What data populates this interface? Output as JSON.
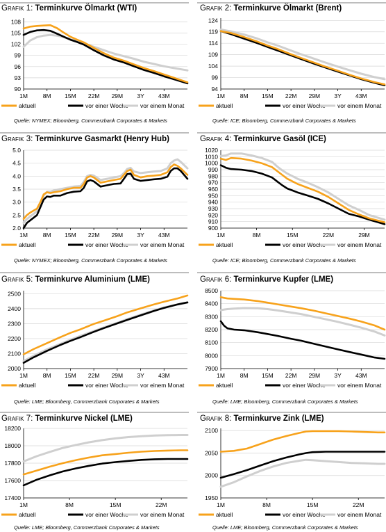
{
  "legend_labels": [
    "aktuell",
    "vor einer Woche",
    "vor einem Monat"
  ],
  "colors": {
    "aktuell": "#f7a21b",
    "woche": "#000000",
    "monat": "#cfcfcf",
    "grid": "#d6d6d6",
    "separator": "#bdbdbd"
  },
  "charts": [
    {
      "id": "c1",
      "prefix": "Grafik 1:",
      "title": "Terminkurve Ölmarkt (WTI)",
      "source": "Quelle: NYMEX; Bloomberg, Commerzbank Corporates & Markets"
    },
    {
      "id": "c2",
      "prefix": "Grafik 2:",
      "title": "Terminkurve Ölmarkt (Brent)",
      "source": "Quelle: ICE; Bloomberg, Commerzbank Corporates & Markets"
    },
    {
      "id": "c3",
      "prefix": "Grafik 3:",
      "title": "Terminkurve Gasmarkt (Henry Hub)",
      "source": "Quelle: NYMEX; Bloomberg, Commerzbank Corporates & Markets"
    },
    {
      "id": "c4",
      "prefix": "Grafik 4:",
      "title": "Terminkurve Gasöl (ICE)",
      "source": "Quelle: ICE; Bloomberg, Commerzbank Corporates & Markets"
    },
    {
      "id": "c5",
      "prefix": "Grafik 5:",
      "title": "Terminkurve Aluminium (LME)",
      "source": "Quelle: LME; Bloomberg, Commerzbank Corporates & Markets"
    },
    {
      "id": "c6",
      "prefix": "Grafik 6:",
      "title": "Terminkurve Kupfer (LME)",
      "source": "Quelle: LME; Bloomberg, Commerzbank Corporates & Markets"
    },
    {
      "id": "c7",
      "prefix": "Grafik 7:",
      "title": "Terminkurve Nickel (LME)",
      "source": "Quelle: LME; Bloomberg, Commerzbank Corporates & Markets"
    },
    {
      "id": "c8",
      "prefix": "Grafik 8:",
      "title": "Terminkurve Zink (LME)",
      "source": "Quelle: LME; Bloomberg, Commerzbank Corporates & Markets"
    }
  ],
  "chart_data": [
    {
      "type": "line",
      "id": "c1",
      "yticks": [
        90,
        93,
        96,
        99,
        102,
        105,
        108
      ],
      "ylim": [
        90,
        109
      ],
      "xticks": [
        "1M",
        "8M",
        "15M",
        "22M",
        "29M",
        "3Y",
        "43M"
      ],
      "xtick_months": [
        1,
        8,
        15,
        22,
        29,
        36,
        43
      ],
      "xlim": [
        1,
        50
      ],
      "x": [
        1,
        3,
        5,
        7,
        9,
        11,
        13,
        15,
        17,
        19,
        22,
        25,
        28,
        31,
        34,
        37,
        40,
        43,
        46,
        50
      ],
      "series": [
        {
          "key": "aktuell",
          "values": [
            106.2,
            106.7,
            106.9,
            107.0,
            107.1,
            106.3,
            105.1,
            104.0,
            103.2,
            102.5,
            101.0,
            99.6,
            98.4,
            97.6,
            96.6,
            95.6,
            94.8,
            93.9,
            93.0,
            91.8
          ]
        },
        {
          "key": "woche",
          "values": [
            104.5,
            105.3,
            105.7,
            105.8,
            105.6,
            104.8,
            104.0,
            103.2,
            102.6,
            101.9,
            100.4,
            99.0,
            97.9,
            97.1,
            96.1,
            95.1,
            94.3,
            93.4,
            92.6,
            91.5
          ]
        },
        {
          "key": "monat",
          "values": [
            101.3,
            103.0,
            103.9,
            104.3,
            104.5,
            104.3,
            103.9,
            103.3,
            102.8,
            102.3,
            101.3,
            100.4,
            99.5,
            98.8,
            98.1,
            97.3,
            96.7,
            96.1,
            95.6,
            95.0
          ]
        }
      ]
    },
    {
      "type": "line",
      "id": "c2",
      "yticks": [
        94,
        99,
        104,
        109,
        114,
        119,
        124
      ],
      "ylim": [
        94,
        125
      ],
      "xticks": [
        "1M",
        "8M",
        "15M",
        "22M",
        "29M",
        "3Y",
        "43M"
      ],
      "xtick_months": [
        1,
        8,
        15,
        22,
        29,
        36,
        43
      ],
      "xlim": [
        1,
        50
      ],
      "x": [
        1,
        4,
        8,
        12,
        15,
        18,
        22,
        25,
        29,
        32,
        36,
        40,
        43,
        47,
        50
      ],
      "series": [
        {
          "key": "aktuell",
          "values": [
            119.3,
            118.5,
            116.7,
            114.7,
            113.0,
            111.5,
            109.2,
            107.6,
            105.5,
            103.9,
            102.0,
            100.0,
            98.6,
            97.0,
            96.0
          ]
        },
        {
          "key": "woche",
          "values": [
            119.3,
            118.0,
            116.0,
            114.0,
            112.4,
            110.8,
            108.7,
            107.1,
            105.0,
            103.5,
            101.6,
            99.7,
            98.3,
            96.7,
            95.6
          ]
        },
        {
          "key": "monat",
          "values": [
            120.0,
            119.2,
            117.8,
            116.0,
            114.4,
            113.0,
            110.8,
            109.2,
            107.2,
            105.7,
            103.8,
            102.0,
            100.7,
            99.2,
            98.3
          ]
        }
      ]
    },
    {
      "type": "line",
      "id": "c3",
      "yticks": [
        2.0,
        2.5,
        3.0,
        3.5,
        4.0,
        4.5,
        5.0
      ],
      "ylim": [
        2.0,
        5.0
      ],
      "xticks": [
        "1M",
        "8M",
        "15M",
        "22M",
        "29M",
        "3Y",
        "43M"
      ],
      "xtick_months": [
        1,
        8,
        15,
        22,
        29,
        36,
        43
      ],
      "xlim": [
        1,
        50
      ],
      "x": [
        1,
        2,
        3,
        5,
        6,
        7,
        8,
        9,
        10,
        12,
        14,
        16,
        18,
        19,
        20,
        21,
        22,
        24,
        26,
        28,
        30,
        31,
        32,
        33,
        34,
        36,
        38,
        40,
        42,
        44,
        45,
        46,
        47,
        48,
        50
      ],
      "series": [
        {
          "key": "aktuell",
          "values": [
            2.35,
            2.5,
            2.6,
            2.75,
            3.0,
            3.3,
            3.38,
            3.35,
            3.38,
            3.42,
            3.5,
            3.55,
            3.55,
            3.7,
            3.95,
            4.0,
            3.95,
            3.75,
            3.8,
            3.85,
            3.9,
            4.05,
            4.2,
            4.25,
            4.05,
            3.95,
            4.0,
            4.02,
            4.05,
            4.15,
            4.35,
            4.45,
            4.4,
            4.3,
            4.05
          ]
        },
        {
          "key": "woche",
          "values": [
            2.0,
            2.2,
            2.3,
            2.5,
            2.8,
            3.1,
            3.22,
            3.2,
            3.25,
            3.25,
            3.35,
            3.4,
            3.42,
            3.55,
            3.8,
            3.85,
            3.8,
            3.6,
            3.65,
            3.7,
            3.72,
            3.9,
            4.08,
            4.1,
            3.9,
            3.82,
            3.85,
            3.88,
            3.9,
            3.98,
            4.2,
            4.3,
            4.3,
            4.2,
            3.9
          ]
        },
        {
          "key": "monat",
          "values": [
            2.2,
            2.35,
            2.45,
            2.65,
            2.95,
            3.25,
            3.4,
            3.4,
            3.45,
            3.5,
            3.55,
            3.6,
            3.62,
            3.78,
            4.0,
            4.05,
            4.02,
            3.85,
            3.9,
            3.95,
            4.0,
            4.12,
            4.28,
            4.32,
            4.18,
            4.12,
            4.15,
            4.18,
            4.2,
            4.3,
            4.5,
            4.6,
            4.65,
            4.55,
            4.3
          ]
        }
      ]
    },
    {
      "type": "line",
      "id": "c4",
      "yticks": [
        900,
        910,
        920,
        930,
        940,
        950,
        960,
        970,
        980,
        990,
        1000,
        1010,
        1020
      ],
      "ylim": [
        900,
        1020
      ],
      "xticks": [
        "1M",
        "8M",
        "15M",
        "22M",
        "29M"
      ],
      "xtick_months": [
        1,
        8,
        15,
        22,
        29
      ],
      "xlim": [
        1,
        33
      ],
      "x": [
        1,
        2,
        3,
        5,
        7,
        9,
        11,
        12,
        13,
        14,
        15,
        16,
        18,
        20,
        22,
        24,
        26,
        28,
        30,
        33
      ],
      "series": [
        {
          "key": "aktuell",
          "values": [
            1007,
            1005,
            1008,
            1007,
            1004,
            1000,
            994,
            988,
            982,
            976,
            972,
            968,
            962,
            956,
            948,
            938,
            928,
            921,
            915,
            909
          ]
        },
        {
          "key": "woche",
          "values": [
            997,
            993,
            991,
            990,
            988,
            984,
            978,
            972,
            966,
            961,
            958,
            955,
            950,
            945,
            938,
            930,
            922,
            918,
            913,
            906
          ]
        },
        {
          "key": "monat",
          "values": [
            1011,
            1012,
            1015,
            1015,
            1012,
            1008,
            1002,
            995,
            989,
            984,
            980,
            976,
            970,
            963,
            955,
            945,
            935,
            928,
            920,
            913
          ]
        }
      ]
    },
    {
      "type": "line",
      "id": "c5",
      "yticks": [
        2000,
        2100,
        2200,
        2300,
        2400,
        2500
      ],
      "ylim": [
        2000,
        2520
      ],
      "xticks": [
        "1M",
        "8M",
        "15M",
        "22M",
        "29M",
        "3Y",
        "43M"
      ],
      "xtick_months": [
        1,
        8,
        15,
        22,
        29,
        36,
        43
      ],
      "xlim": [
        1,
        50
      ],
      "x": [
        1,
        4,
        8,
        12,
        15,
        18,
        22,
        25,
        29,
        32,
        36,
        40,
        43,
        47,
        50
      ],
      "series": [
        {
          "key": "aktuell",
          "values": [
            2095,
            2130,
            2170,
            2210,
            2238,
            2262,
            2298,
            2320,
            2350,
            2375,
            2402,
            2428,
            2446,
            2468,
            2488
          ]
        },
        {
          "key": "woche",
          "values": [
            2038,
            2075,
            2118,
            2158,
            2185,
            2210,
            2245,
            2270,
            2302,
            2325,
            2355,
            2385,
            2405,
            2428,
            2442
          ]
        },
        {
          "key": "monat",
          "values": [
            2050,
            2085,
            2128,
            2165,
            2192,
            2218,
            2250,
            2275,
            2305,
            2330,
            2360,
            2388,
            2408,
            2428,
            2440
          ]
        }
      ]
    },
    {
      "type": "line",
      "id": "c6",
      "yticks": [
        7900,
        8000,
        8100,
        8200,
        8300,
        8400,
        8500
      ],
      "ylim": [
        7900,
        8500
      ],
      "xticks": [
        "1M",
        "8M",
        "15M",
        "22M",
        "29M",
        "3Y",
        "43M"
      ],
      "xtick_months": [
        1,
        8,
        15,
        22,
        29,
        36,
        43
      ],
      "xlim": [
        1,
        50
      ],
      "x": [
        1,
        2,
        3,
        5,
        8,
        12,
        15,
        18,
        22,
        25,
        29,
        32,
        36,
        40,
        43,
        47,
        50
      ],
      "series": [
        {
          "key": "aktuell",
          "values": [
            8450,
            8445,
            8440,
            8437,
            8432,
            8420,
            8408,
            8395,
            8378,
            8365,
            8345,
            8328,
            8305,
            8282,
            8262,
            8232,
            8200
          ]
        },
        {
          "key": "woche",
          "values": [
            8265,
            8230,
            8210,
            8200,
            8195,
            8180,
            8166,
            8152,
            8130,
            8115,
            8090,
            8072,
            8048,
            8025,
            8008,
            7985,
            7975
          ]
        },
        {
          "key": "monat",
          "values": [
            8350,
            8355,
            8358,
            8362,
            8366,
            8365,
            8358,
            8348,
            8332,
            8320,
            8298,
            8282,
            8260,
            8235,
            8215,
            8185,
            8155
          ]
        }
      ]
    },
    {
      "type": "line",
      "id": "c7",
      "yticks": [
        17400,
        17600,
        17800,
        18000,
        18200
      ],
      "ylim": [
        17400,
        18200
      ],
      "xticks": [
        "1M",
        "8M",
        "15M",
        "22M"
      ],
      "xtick_months": [
        1,
        8,
        15,
        22
      ],
      "xlim": [
        1,
        26
      ],
      "x": [
        1,
        3,
        5,
        7,
        9,
        11,
        13,
        15,
        17,
        19,
        21,
        23,
        25,
        26
      ],
      "series": [
        {
          "key": "aktuell",
          "values": [
            17670,
            17715,
            17760,
            17800,
            17835,
            17865,
            17890,
            17905,
            17920,
            17932,
            17940,
            17945,
            17948,
            17948
          ]
        },
        {
          "key": "woche",
          "values": [
            17545,
            17610,
            17660,
            17705,
            17740,
            17770,
            17795,
            17812,
            17826,
            17838,
            17845,
            17848,
            17848,
            17848
          ]
        },
        {
          "key": "monat",
          "values": [
            17820,
            17880,
            17930,
            17975,
            18010,
            18040,
            18065,
            18085,
            18100,
            18110,
            18118,
            18122,
            18124,
            18124
          ]
        }
      ]
    },
    {
      "type": "line",
      "id": "c8",
      "yticks": [
        1950,
        2000,
        2050,
        2100
      ],
      "ylim": [
        1950,
        2105
      ],
      "xticks": [
        "1M",
        "8M",
        "15M",
        "22M"
      ],
      "xtick_months": [
        1,
        8,
        15,
        22
      ],
      "xlim": [
        1,
        26
      ],
      "x": [
        1,
        3,
        5,
        7,
        9,
        11,
        13,
        14,
        15,
        17,
        19,
        21,
        23,
        25,
        26
      ],
      "series": [
        {
          "key": "aktuell",
          "values": [
            2053,
            2055,
            2060,
            2070,
            2080,
            2088,
            2095,
            2098,
            2099,
            2099,
            2099,
            2098,
            2097,
            2096,
            2096
          ]
        },
        {
          "key": "woche",
          "values": [
            1995,
            2003,
            2012,
            2022,
            2032,
            2040,
            2047,
            2050,
            2052,
            2053,
            2053,
            2053,
            2053,
            2053,
            2053
          ]
        },
        {
          "key": "monat",
          "values": [
            1975,
            1985,
            1998,
            2010,
            2020,
            2028,
            2033,
            2035,
            2034,
            2032,
            2030,
            2028,
            2027,
            2026,
            2026
          ]
        }
      ]
    }
  ]
}
